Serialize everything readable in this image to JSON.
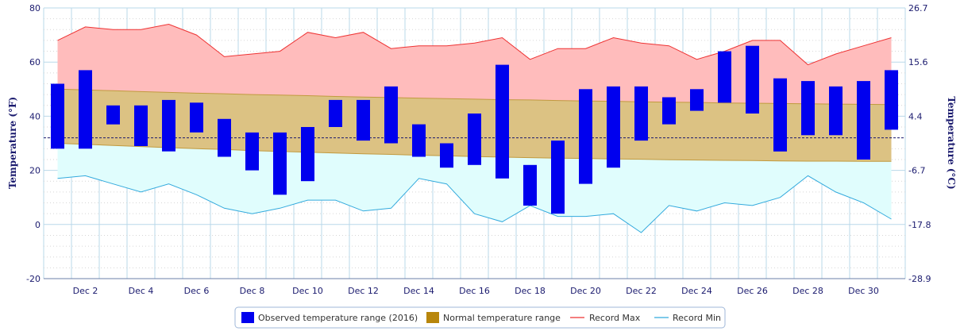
{
  "chart_data": {
    "type": "bar",
    "categories": [
      "Dec 1",
      "Dec 2",
      "Dec 3",
      "Dec 4",
      "Dec 5",
      "Dec 6",
      "Dec 7",
      "Dec 8",
      "Dec 9",
      "Dec 10",
      "Dec 11",
      "Dec 12",
      "Dec 13",
      "Dec 14",
      "Dec 15",
      "Dec 16",
      "Dec 17",
      "Dec 18",
      "Dec 19",
      "Dec 20",
      "Dec 21",
      "Dec 22",
      "Dec 23",
      "Dec 24",
      "Dec 25",
      "Dec 26",
      "Dec 27",
      "Dec 28",
      "Dec 29",
      "Dec 30",
      "Dec 31"
    ],
    "x_tick_labels": [
      "Dec 2",
      "Dec 4",
      "Dec 6",
      "Dec 8",
      "Dec 10",
      "Dec 12",
      "Dec 14",
      "Dec 16",
      "Dec 18",
      "Dec 20",
      "Dec 22",
      "Dec 24",
      "Dec 26",
      "Dec 28",
      "Dec 30"
    ],
    "ylabel": "Temperature (°F)",
    "y2label": "Temperature (°C)",
    "ylim": [
      -20,
      80
    ],
    "y_ticks": [
      -20,
      0,
      20,
      40,
      60,
      80
    ],
    "y2_tick_labels": [
      "-28.9",
      "-17.8",
      "-6.7",
      "4.4",
      "15.6",
      "26.7"
    ],
    "freezing_line": 32,
    "grid": true,
    "legend_position": "bottom-center",
    "series": [
      {
        "name": "Observed temperature range (2016)",
        "kind": "range-bar",
        "color": "#0000ee",
        "low": [
          28,
          28,
          37,
          29,
          27,
          34,
          25,
          20,
          11,
          16,
          36,
          31,
          30,
          25,
          21,
          22,
          17,
          7,
          4,
          15,
          21,
          31,
          37,
          42,
          45,
          41,
          27,
          33,
          33,
          24,
          35
        ],
        "high": [
          52,
          57,
          44,
          44,
          46,
          45,
          39,
          34,
          34,
          36,
          46,
          46,
          51,
          37,
          30,
          41,
          59,
          22,
          31,
          50,
          51,
          51,
          47,
          50,
          64,
          66,
          54,
          53,
          51,
          53,
          57
        ]
      },
      {
        "name": "Normal temperature range",
        "kind": "area-range",
        "color": "#b8860b",
        "low": [
          30,
          29.6,
          29.2,
          28.8,
          28.4,
          28.0,
          27.7,
          27.3,
          27.0,
          26.7,
          26.4,
          26.1,
          25.9,
          25.6,
          25.4,
          25.1,
          24.9,
          24.7,
          24.5,
          24.4,
          24.2,
          24.1,
          23.9,
          23.8,
          23.7,
          23.6,
          23.5,
          23.4,
          23.4,
          23.3,
          23.3
        ],
        "high": [
          50,
          49.7,
          49.4,
          49.1,
          48.8,
          48.5,
          48.3,
          48.0,
          47.8,
          47.6,
          47.3,
          47.1,
          46.9,
          46.7,
          46.5,
          46.3,
          46.1,
          46.0,
          45.8,
          45.6,
          45.5,
          45.3,
          45.2,
          45.1,
          44.9,
          44.8,
          44.7,
          44.6,
          44.5,
          44.4,
          44.3
        ]
      },
      {
        "name": "Record Max",
        "kind": "line",
        "color": "#ee3333",
        "values": [
          68,
          73,
          72,
          72,
          74,
          70,
          62,
          63,
          64,
          71,
          69,
          71,
          65,
          66,
          66,
          67,
          69,
          61,
          65,
          65,
          69,
          67,
          66,
          61,
          64,
          68,
          68,
          59,
          63,
          66,
          69
        ]
      },
      {
        "name": "Record Min",
        "kind": "line",
        "color": "#33aadd",
        "values": [
          17,
          18,
          15,
          12,
          15,
          11,
          6,
          4,
          6,
          9,
          9,
          5,
          6,
          17,
          15,
          4,
          1,
          7,
          3,
          3,
          4,
          -3,
          7,
          5,
          8,
          7,
          10,
          18,
          12,
          8,
          2
        ]
      }
    ]
  },
  "legend": {
    "items": [
      {
        "label": "Observed temperature range (2016)",
        "swatch": "bar",
        "color": "#0000ee"
      },
      {
        "label": "Normal temperature range",
        "swatch": "bar",
        "color": "#b8860b"
      },
      {
        "label": "Record Max",
        "swatch": "line",
        "color": "#ee3333"
      },
      {
        "label": "Record Min",
        "swatch": "line",
        "color": "#33aadd"
      }
    ]
  }
}
